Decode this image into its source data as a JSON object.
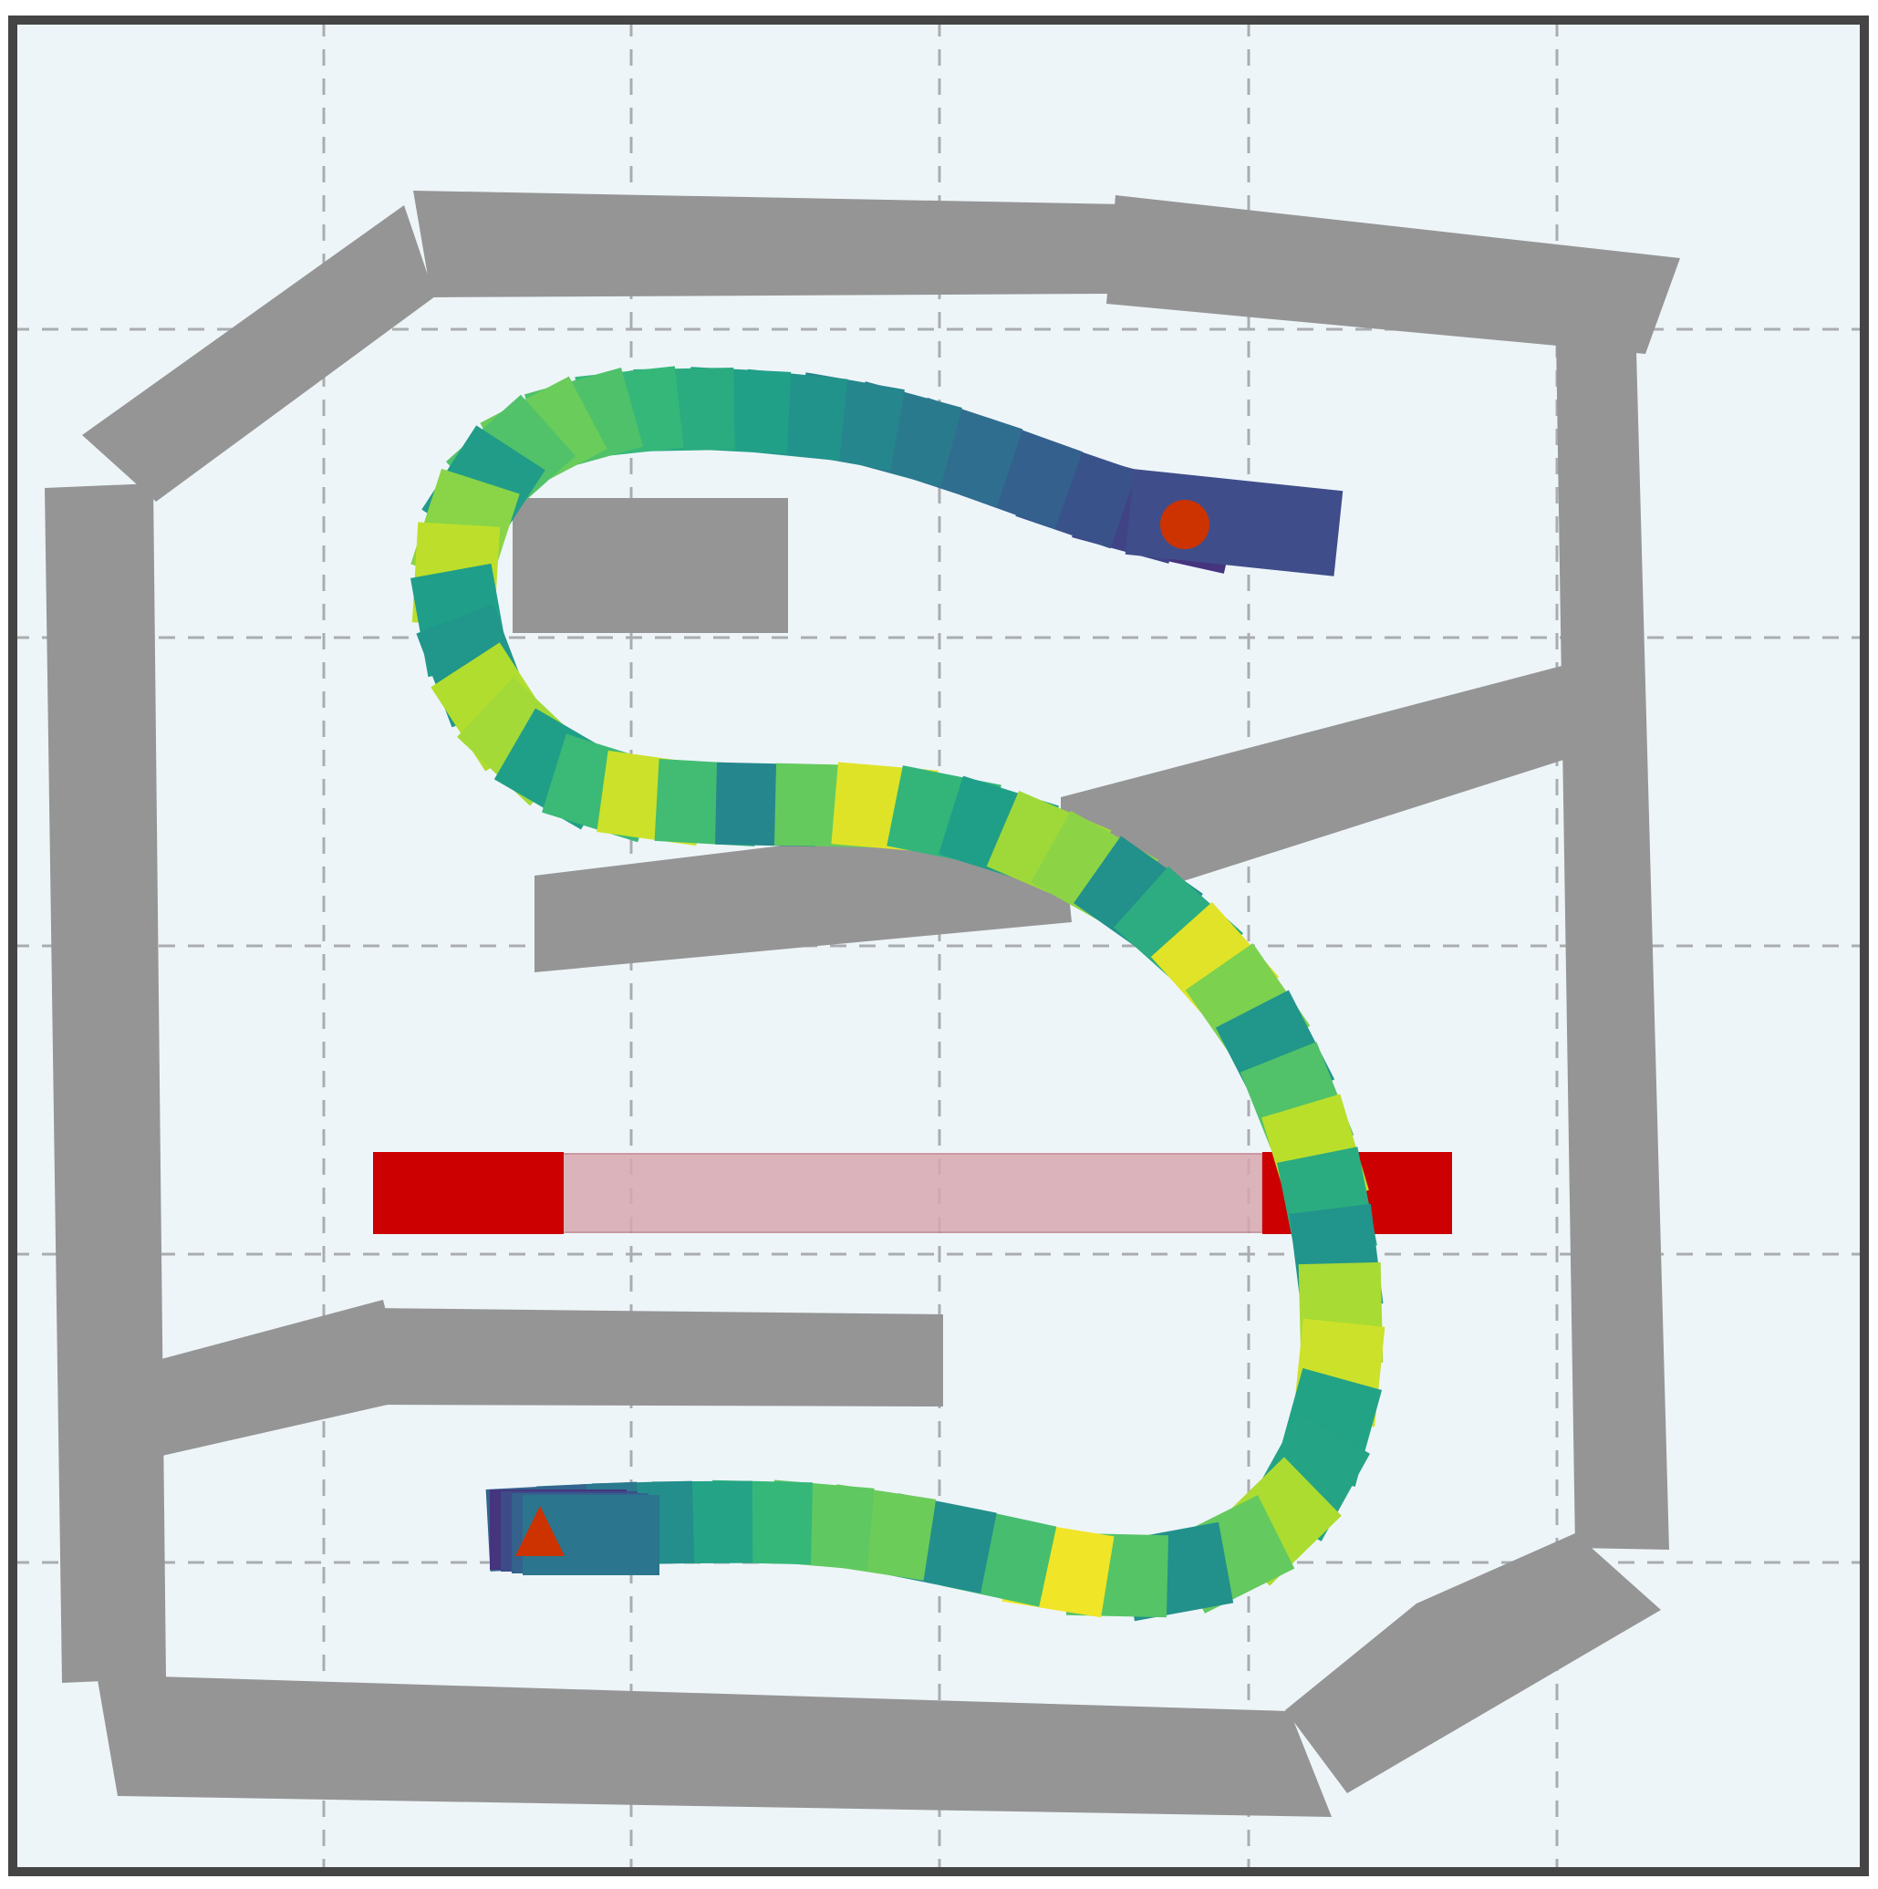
{
  "colors": {
    "background": "#eef5f9",
    "border": "#454545",
    "grid": "#a9adb0",
    "wall": "#959595",
    "gate": "#cc0000",
    "gate_open": "#d8a8b0",
    "goal_marker": "#cc3300",
    "start_marker": "#cc3300",
    "start_vehicle": "#3f4e8a"
  },
  "path_colormap": "viridis",
  "legend": {}
}
